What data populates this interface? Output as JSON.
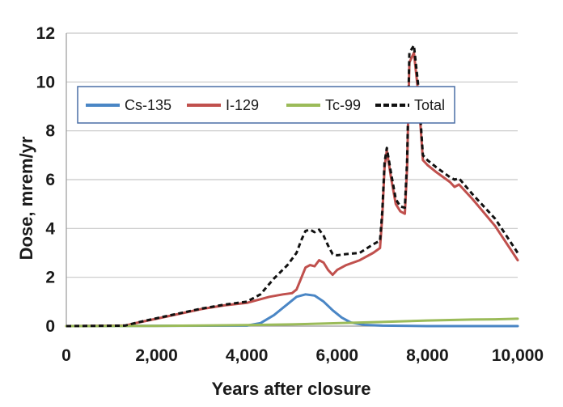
{
  "chart_data": {
    "type": "line",
    "xlabel": "Years after closure",
    "ylabel": "Dose, mrem/yr",
    "xlim": [
      0,
      10000
    ],
    "ylim": [
      0,
      12
    ],
    "xticks": [
      0,
      2000,
      4000,
      6000,
      8000,
      10000
    ],
    "xtick_labels": [
      "0",
      "2,000",
      "4,000",
      "6,000",
      "8,000",
      "10,000"
    ],
    "yticks": [
      0,
      2,
      4,
      6,
      8,
      10,
      12
    ],
    "ytick_labels": [
      "0",
      "2",
      "4",
      "6",
      "8",
      "10",
      "12"
    ],
    "grid": "horizontal",
    "legend": "top-left, boxed",
    "series": [
      {
        "name": "Cs-135",
        "color": "#4a86c5",
        "style": "solid",
        "x": [
          0,
          4000,
          4300,
          4600,
          4900,
          5100,
          5300,
          5500,
          5700,
          5900,
          6100,
          6300,
          6600,
          7000,
          8000,
          10000
        ],
        "y": [
          0,
          0.02,
          0.12,
          0.45,
          0.9,
          1.2,
          1.3,
          1.25,
          1.0,
          0.65,
          0.35,
          0.15,
          0.05,
          0.02,
          0.0,
          0.0
        ]
      },
      {
        "name": "I-129",
        "color": "#c0504d",
        "style": "solid",
        "x": [
          0,
          1300,
          1600,
          2000,
          2500,
          3000,
          3500,
          4000,
          4500,
          4800,
          5000,
          5100,
          5200,
          5300,
          5400,
          5500,
          5600,
          5700,
          5800,
          5900,
          6000,
          6200,
          6500,
          6800,
          6950,
          7000,
          7050,
          7100,
          7200,
          7300,
          7400,
          7500,
          7550,
          7600,
          7700,
          7800,
          7900,
          8000,
          8200,
          8500,
          8600,
          8700,
          9000,
          9500,
          10000
        ],
        "y": [
          0,
          0.02,
          0.15,
          0.3,
          0.5,
          0.7,
          0.85,
          0.95,
          1.2,
          1.3,
          1.35,
          1.5,
          1.95,
          2.4,
          2.5,
          2.45,
          2.7,
          2.6,
          2.3,
          2.1,
          2.3,
          2.5,
          2.7,
          3.0,
          3.2,
          4.5,
          6.5,
          7.2,
          6.0,
          5.0,
          4.7,
          4.6,
          6.5,
          10.8,
          11.2,
          9.5,
          6.8,
          6.6,
          6.3,
          5.9,
          5.7,
          5.8,
          5.2,
          4.1,
          2.7
        ]
      },
      {
        "name": "Tc-99",
        "color": "#9bbb59",
        "style": "solid",
        "x": [
          0,
          2000,
          4000,
          5000,
          6000,
          7000,
          7500,
          8000,
          8500,
          9000,
          9500,
          10000
        ],
        "y": [
          0,
          0.01,
          0.04,
          0.07,
          0.12,
          0.17,
          0.2,
          0.23,
          0.25,
          0.27,
          0.28,
          0.3
        ]
      },
      {
        "name": "Total",
        "color": "#111111",
        "style": "dashed",
        "x": [
          0,
          1300,
          1600,
          2000,
          2500,
          3000,
          3500,
          4000,
          4300,
          4600,
          4900,
          5100,
          5200,
          5300,
          5400,
          5500,
          5600,
          5700,
          5800,
          5900,
          6000,
          6200,
          6500,
          6800,
          6950,
          7000,
          7050,
          7100,
          7200,
          7300,
          7400,
          7500,
          7550,
          7600,
          7700,
          7800,
          7900,
          8000,
          8200,
          8500,
          8600,
          8700,
          9000,
          9500,
          10000
        ],
        "y": [
          0,
          0.02,
          0.16,
          0.32,
          0.52,
          0.72,
          0.88,
          1.0,
          1.3,
          1.95,
          2.5,
          3.0,
          3.5,
          3.9,
          3.95,
          3.85,
          3.95,
          3.7,
          3.3,
          2.95,
          2.9,
          2.95,
          3.0,
          3.35,
          3.5,
          4.7,
          6.7,
          7.3,
          6.2,
          5.2,
          4.9,
          4.85,
          6.8,
          11.2,
          11.5,
          9.8,
          7.0,
          6.8,
          6.5,
          6.1,
          6.0,
          6.05,
          5.4,
          4.4,
          3.0
        ]
      }
    ]
  }
}
